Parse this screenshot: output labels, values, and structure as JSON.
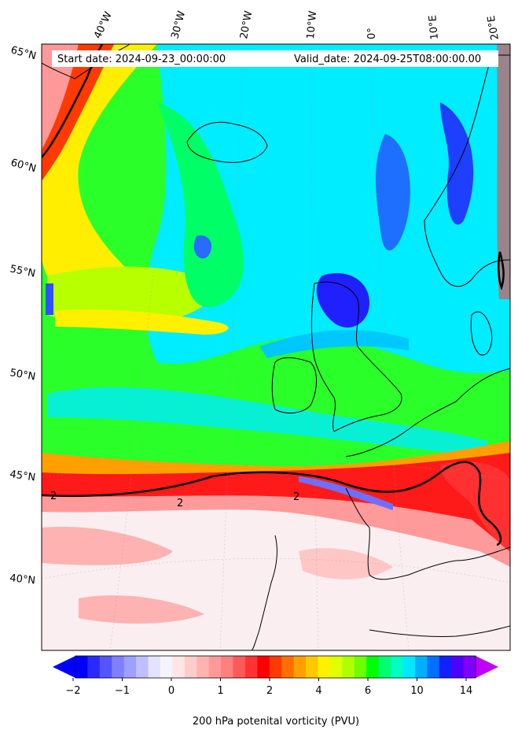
{
  "header": {
    "start_label": "Start date: 2024-09-23_00:00:00",
    "valid_label": "Valid_date: 2024-09-25T08:00:00.00"
  },
  "longitude_labels": [
    "40°W",
    "30°W",
    "20°W",
    "10°W",
    "0°",
    "10°E",
    "20°E"
  ],
  "latitude_labels": [
    "65°N",
    "60°N",
    "55°N",
    "50°N",
    "45°N",
    "40°N"
  ],
  "contour_labels": [
    "2",
    "2",
    "2"
  ],
  "colorbar": {
    "label": "200 hPa potenital vorticity (PVU)",
    "ticks": [
      "−2",
      "−1",
      "0",
      "1",
      "2",
      "4",
      "6",
      "10",
      "14"
    ],
    "colors": [
      "#0000ff",
      "#2a2aff",
      "#5555ff",
      "#7f7fff",
      "#9f9fff",
      "#bfbfff",
      "#e3e3ff",
      "#f4f4ff",
      "#ffe5e5",
      "#ffcccc",
      "#ffb2b2",
      "#ff9999",
      "#ff7f7f",
      "#ff5959",
      "#ff3333",
      "#ff0000",
      "#ff3a00",
      "#ff7000",
      "#ffa000",
      "#ffc800",
      "#fff000",
      "#e0ff00",
      "#b0ff00",
      "#70ff00",
      "#00ff00",
      "#00ff70",
      "#00ffc0",
      "#00e8ff",
      "#00b0ff",
      "#0070ff",
      "#1020ff",
      "#5000ff",
      "#8000ff"
    ],
    "min_color": "#0000ff",
    "max_color": "#c000ff"
  }
}
